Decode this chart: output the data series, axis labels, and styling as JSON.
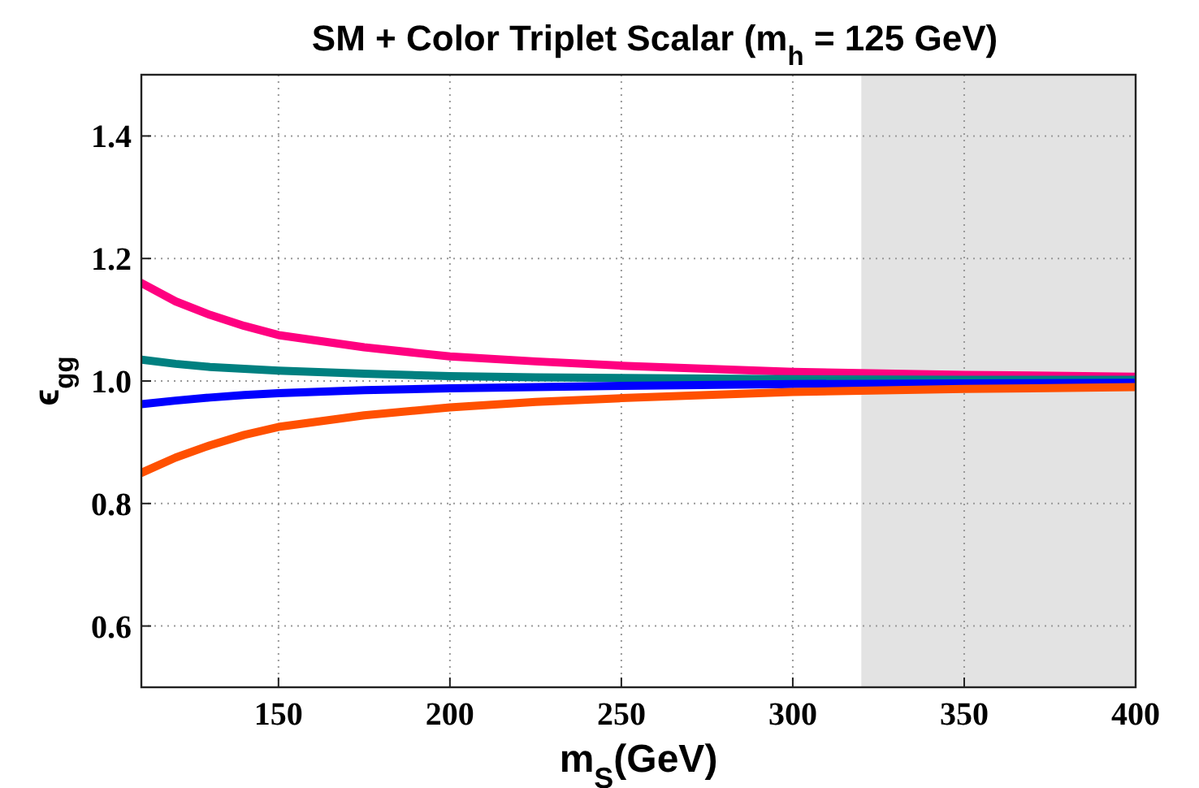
{
  "chart_data": {
    "type": "line",
    "title": "SM + Color Triplet Scalar (m$_{h}$ = 125 GeV)",
    "xlabel": "m$_{S}$(GeV)",
    "ylabel": "ϵ$_{gg}$",
    "x": [
      110,
      120,
      130,
      140,
      150,
      175,
      200,
      225,
      250,
      300,
      350,
      400
    ],
    "series": [
      {
        "color": "#ff0080",
        "values": [
          1.16,
          1.13,
          1.108,
          1.09,
          1.075,
          1.055,
          1.04,
          1.032,
          1.025,
          1.015,
          1.01,
          1.007
        ]
      },
      {
        "color": "#008080",
        "values": [
          1.035,
          1.028,
          1.023,
          1.02,
          1.017,
          1.012,
          1.008,
          1.006,
          1.005,
          1.003,
          1.002,
          1.002
        ]
      },
      {
        "color": "#0000ff",
        "values": [
          0.962,
          0.968,
          0.973,
          0.977,
          0.98,
          0.985,
          0.988,
          0.99,
          0.992,
          0.995,
          0.996,
          0.997
        ]
      },
      {
        "color": "#ff5000",
        "values": [
          0.85,
          0.875,
          0.895,
          0.912,
          0.925,
          0.944,
          0.957,
          0.966,
          0.972,
          0.982,
          0.987,
          0.99
        ]
      }
    ],
    "xlim": [
      110,
      400
    ],
    "ylim": [
      0.5,
      1.5
    ],
    "xticks": [
      150,
      200,
      250,
      300,
      350,
      400
    ],
    "yticks": [
      0.6,
      0.8,
      {
        "value": 1,
        "label": "1.0"
      },
      1.2,
      1.4
    ],
    "bands": [
      {
        "axis": "x",
        "from": 320,
        "to": 400,
        "color": "#e3e3e3"
      }
    ],
    "grid": true,
    "line_style": "solid",
    "marker": "none"
  }
}
